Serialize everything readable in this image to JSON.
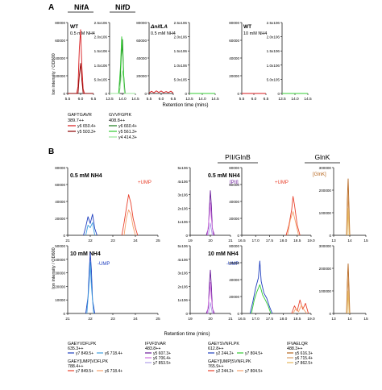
{
  "figure": {
    "panel_a_letter": "A",
    "panel_b_letter": "B",
    "y_axis_label": "Ion intensity / OD600",
    "x_axis_label": "Retention time (mins)"
  },
  "colors": {
    "red": "#d7191c",
    "darkred": "#8b0000",
    "green": "#33cc33",
    "lightgreen": "#99e699",
    "darkgreen": "#1b7a1b",
    "blue": "#1f3fbf",
    "ltblue": "#3fa0e0",
    "red2": "#e8412c",
    "orange": "#f5a06a",
    "purple": "#6a1b9a",
    "violet": "#a050d0",
    "magenta": "#d070e0",
    "lavender": "#b0a0e8",
    "brown": "#b5651d",
    "tan": "#d9a066",
    "gold": "#e6b85c"
  },
  "panel_a": {
    "titles": {
      "nifA": "NifA",
      "nifD": "NifD"
    },
    "box_label": "",
    "conditions": {
      "wt_low": "WT",
      "wt_low_sub": "0.5 mM NH4",
      "nifla": "ΔnifLA",
      "nifla_sub": "0.5 mM NH4",
      "wt_high": "WT",
      "wt_high_sub": "10 mM NH4"
    },
    "legends": [
      {
        "peptide": "GAFTGAVR",
        "mass": "389.7++",
        "ions": [
          {
            "label": "y6 650.4+",
            "color": "#d7191c"
          },
          {
            "label": "y5 503.3+",
            "color": "#8b0000"
          }
        ]
      },
      {
        "peptide": "GVVFGPIK",
        "mass": "408.8++",
        "ions": [
          {
            "label": "y6 660.4+",
            "color": "#1b7a1b"
          },
          {
            "label": "y5 561.3+",
            "color": "#33cc33"
          },
          {
            "label": "y4 414.3+",
            "color": "#99e699"
          }
        ]
      }
    ]
  },
  "panel_b": {
    "titles": {
      "pii": "PII/GlnB",
      "glnk": "GlnK"
    },
    "conditions": {
      "low": "0.5 mM NH4",
      "high": "10 mM NH4"
    },
    "annotations": {
      "ump_plus_1": "+UMP",
      "ump_plus_2": "+UMP",
      "ump_minus_1": "-UMP",
      "ump_minus_2": "-UMP",
      "pii_tag": "[PII]",
      "glnk_tag": "[GlnK]"
    },
    "legends": [
      {
        "peptide": "GAEYVDFLPK",
        "mass": "635.3++",
        "ions": [
          {
            "label": "y7 849.5+",
            "color": "#1f3fbf"
          },
          {
            "label": "y6 718.4+",
            "color": "#3fa0e0"
          }
        ],
        "peptide2": "GAEY[UMP]VDFLPK",
        "mass2": "788.4++",
        "ions2": [
          {
            "label": "y7 849.5+",
            "color": "#e8412c"
          },
          {
            "label": "y6 718.4+",
            "color": "#f5a06a"
          }
        ]
      },
      {
        "peptide": "IFVFDVAR",
        "mass": "483.8++",
        "ions": [
          {
            "label": "y5 607.3+",
            "color": "#6a1b9a"
          },
          {
            "label": "y6 706.4+",
            "color": "#d070e0"
          },
          {
            "label": "y7 853.5+",
            "color": "#b0a0e8"
          }
        ]
      },
      {
        "peptide": "GAEYSVNFLPK",
        "mass": "612.8++",
        "ions": [
          {
            "label": "y2 244.2+",
            "color": "#1f3fbf"
          },
          {
            "label": "y7 804.5+",
            "color": "#33cc33"
          }
        ],
        "peptide2": "GAEY[UMP]SVNFLPK",
        "mass2": "765.9++",
        "ions2": [
          {
            "label": "y2 244.2+",
            "color": "#e8412c"
          },
          {
            "label": "y7 804.5+",
            "color": "#f5a06a"
          }
        ]
      },
      {
        "peptide": "IFVAELQR",
        "mass": "488.3++",
        "ions": [
          {
            "label": "y5 616.3+",
            "color": "#b5651d"
          },
          {
            "label": "y6 715.4+",
            "color": "#d9a066"
          },
          {
            "label": "y7 862.5+",
            "color": "#e6b85c"
          }
        ]
      }
    ]
  },
  "chart_data": [
    {
      "type": "line",
      "panel": "A-NifA",
      "title": "NifA",
      "condition": "WT 0.5 mM NH4",
      "xlim": [
        5.5,
        6.5
      ],
      "ylim": [
        0,
        80000
      ],
      "x_ticks": [
        "5.5",
        "6.0",
        "6.5"
      ],
      "y_ticks": [
        "0",
        "20000",
        "40000",
        "60000",
        "80000"
      ],
      "series": [
        {
          "name": "y6 650.4+",
          "color": "#d7191c",
          "x": [
            5.5,
            5.85,
            5.9,
            5.95,
            6.0,
            6.05,
            6.1,
            6.15,
            6.5
          ],
          "y": [
            0,
            0,
            8000,
            50000,
            72000,
            30000,
            5000,
            0,
            0
          ]
        },
        {
          "name": "y5 503.3+",
          "color": "#8b0000",
          "x": [
            5.5,
            5.9,
            5.95,
            6.0,
            6.05,
            6.1,
            6.5
          ],
          "y": [
            0,
            0,
            20000,
            34000,
            15000,
            0,
            0
          ]
        }
      ]
    },
    {
      "type": "line",
      "panel": "A-NifD",
      "title": "NifD",
      "condition": "WT 0.5 mM NH4",
      "xlim": [
        13.5,
        14.5
      ],
      "ylim": [
        0,
        2500000
      ],
      "x_ticks": [
        "13.5",
        "14.0",
        "14.5"
      ],
      "y_ticks": [
        "0",
        "5.0x10^5",
        "1.0x10^6",
        "1.5x10^6",
        "2.0x10^6",
        "2.5x10^6"
      ],
      "series": [
        {
          "name": "y6 660.4+",
          "color": "#1b7a1b",
          "x": [
            13.5,
            13.85,
            13.9,
            13.95,
            14.0,
            14.05,
            14.1,
            14.5
          ],
          "y": [
            0,
            0,
            200000,
            1300000,
            1900000,
            600000,
            0,
            0
          ]
        },
        {
          "name": "y5 561.3+",
          "color": "#33cc33",
          "x": [
            13.5,
            13.85,
            13.92,
            13.97,
            14.02,
            14.08,
            14.5
          ],
          "y": [
            0,
            0,
            900000,
            2000000,
            1200000,
            0,
            0
          ]
        },
        {
          "name": "y4 414.3+",
          "color": "#99e699",
          "x": [
            13.5,
            13.88,
            13.95,
            14.0,
            14.08,
            14.5
          ],
          "y": [
            0,
            0,
            600000,
            800000,
            0,
            0
          ]
        }
      ]
    },
    {
      "type": "line",
      "panel": "A-NifA",
      "condition": "ΔnifLA 0.5 mM NH4",
      "xlim": [
        5.5,
        6.5
      ],
      "ylim": [
        0,
        80000
      ],
      "series": [
        {
          "name": "y6 650.4+",
          "color": "#d7191c",
          "x": [
            5.5,
            5.6,
            5.7,
            5.8,
            5.9,
            6.0,
            6.1,
            6.2,
            6.3,
            6.4,
            6.5
          ],
          "y": [
            500,
            2500,
            800,
            3000,
            1200,
            2800,
            900,
            2200,
            1000,
            2600,
            500
          ]
        }
      ]
    },
    {
      "type": "line",
      "panel": "A-NifD",
      "condition": "ΔnifLA 0.5 mM NH4",
      "xlim": [
        13.5,
        14.5
      ],
      "ylim": [
        0,
        2500000
      ],
      "series": [
        {
          "name": "y5 561.3+",
          "color": "#33cc33",
          "x": [
            13.5,
            14.5
          ],
          "y": [
            0,
            0
          ]
        }
      ]
    },
    {
      "type": "line",
      "panel": "A-NifA",
      "condition": "WT 10 mM NH4",
      "xlim": [
        5.5,
        6.5
      ],
      "ylim": [
        0,
        80000
      ],
      "series": [
        {
          "name": "y6 650.4+",
          "color": "#d7191c",
          "x": [
            5.5,
            6.5
          ],
          "y": [
            0,
            0
          ]
        }
      ]
    },
    {
      "type": "line",
      "panel": "A-NifD",
      "condition": "WT 10 mM NH4",
      "xlim": [
        13.5,
        14.5
      ],
      "ylim": [
        0,
        2500000
      ],
      "series": [
        {
          "name": "y5 561.3+",
          "color": "#33cc33",
          "x": [
            13.5,
            14.5
          ],
          "y": [
            0,
            0
          ]
        }
      ]
    },
    {
      "type": "line",
      "panel": "B-GAEYVDFLPK",
      "condition": "0.5 mM NH4",
      "xlim": [
        21,
        25
      ],
      "ylim": [
        0,
        80000
      ],
      "x_ticks": [
        "21",
        "22",
        "23",
        "24",
        "25"
      ],
      "y_ticks": [
        "0",
        "20000",
        "40000",
        "60000",
        "80000"
      ],
      "series": [
        {
          "name": "y7 849.5+",
          "color": "#1f3fbf",
          "x": [
            21.7,
            21.8,
            21.9,
            22.0,
            22.1,
            22.2,
            22.3
          ],
          "y": [
            0,
            10000,
            22000,
            14000,
            25000,
            8000,
            0
          ]
        },
        {
          "name": "y6 718.4+",
          "color": "#3fa0e0",
          "x": [
            21.8,
            21.9,
            22.0,
            22.1,
            22.2
          ],
          "y": [
            0,
            12000,
            9000,
            15000,
            0
          ]
        },
        {
          "name": "y7 849.5+ UMP",
          "color": "#e8412c",
          "x": [
            23.4,
            23.5,
            23.6,
            23.7,
            23.8,
            23.9,
            24.0,
            24.1
          ],
          "y": [
            0,
            15000,
            32000,
            48000,
            38000,
            20000,
            9000,
            0
          ]
        },
        {
          "name": "y6 718.4+ UMP",
          "color": "#f5a06a",
          "x": [
            23.5,
            23.6,
            23.7,
            23.8,
            23.9,
            24.0
          ],
          "y": [
            0,
            20000,
            30000,
            25000,
            10000,
            0
          ]
        }
      ]
    },
    {
      "type": "line",
      "panel": "B-IFVFDVAR",
      "condition": "0.5 mM NH4",
      "xlim": [
        19,
        21
      ],
      "ylim": [
        0,
        5000000
      ],
      "x_ticks": [
        "19",
        "20",
        "21"
      ],
      "y_ticks": [
        "0",
        "1x10^6",
        "2x10^6",
        "3x10^6",
        "4x10^6",
        "5x10^6"
      ],
      "series": [
        {
          "name": "y5 607.3+",
          "color": "#6a1b9a",
          "x": [
            19.8,
            19.9,
            19.95,
            20.0,
            20.05,
            20.1,
            20.2
          ],
          "y": [
            0,
            500000,
            2000000,
            3300000,
            2200000,
            500000,
            0
          ]
        },
        {
          "name": "y6 706.4+",
          "color": "#d070e0",
          "x": [
            19.85,
            19.95,
            20.0,
            20.05,
            20.15
          ],
          "y": [
            0,
            1500000,
            2400000,
            1200000,
            0
          ]
        },
        {
          "name": "y7 853.5+",
          "color": "#b0a0e8",
          "x": [
            19.9,
            20.0,
            20.1
          ],
          "y": [
            0,
            900000,
            0
          ]
        }
      ]
    },
    {
      "type": "line",
      "panel": "B-GAEYSVNFLPK",
      "condition": "0.5 mM NH4",
      "xlim": [
        16.5,
        19.0
      ],
      "ylim": [
        0,
        80000
      ],
      "x_ticks": [
        "16.5",
        "17.0",
        "17.5",
        "18.0",
        "18.5",
        "19.0"
      ],
      "y_ticks": [
        "0",
        "20000",
        "40000",
        "60000",
        "80000"
      ],
      "series": [
        {
          "name": "y2 244.2+ UMP",
          "color": "#e8412c",
          "x": [
            18.1,
            18.2,
            18.3,
            18.35,
            18.4,
            18.5,
            18.6
          ],
          "y": [
            0,
            12000,
            30000,
            46000,
            36000,
            12000,
            0
          ]
        },
        {
          "name": "y7 804.5+ UMP",
          "color": "#f5a06a",
          "x": [
            18.15,
            18.25,
            18.35,
            18.45,
            18.55
          ],
          "y": [
            0,
            18000,
            28000,
            14000,
            0
          ]
        }
      ]
    },
    {
      "type": "line",
      "panel": "B-IFVAELQR",
      "condition": "0.5 mM NH4",
      "xlim": [
        13,
        15
      ],
      "ylim": [
        0,
        300000
      ],
      "x_ticks": [
        "13",
        "14",
        "15"
      ],
      "y_ticks": [
        "0",
        "100000",
        "200000",
        "300000"
      ],
      "series": [
        {
          "name": "y5 616.3+",
          "color": "#b5651d",
          "x": [
            13.8,
            13.85,
            13.9,
            13.95,
            14.0
          ],
          "y": [
            0,
            160000,
            250000,
            130000,
            0
          ]
        },
        {
          "name": "y6 715.4+",
          "color": "#d9a066",
          "x": [
            13.82,
            13.88,
            13.93,
            13.98
          ],
          "y": [
            0,
            180000,
            100000,
            0
          ]
        },
        {
          "name": "y7 862.5+",
          "color": "#e6b85c",
          "x": [
            13.84,
            13.9,
            13.96
          ],
          "y": [
            0,
            120000,
            0
          ]
        }
      ]
    },
    {
      "type": "line",
      "panel": "B-GAEYVDFLPK",
      "condition": "10 mM NH4",
      "xlim": [
        21,
        25
      ],
      "ylim": [
        0,
        50000
      ],
      "x_ticks": [
        "21",
        "22",
        "23",
        "24",
        "25"
      ],
      "y_ticks": [
        "0",
        "10000",
        "20000",
        "30000",
        "40000",
        "50000"
      ],
      "series": [
        {
          "name": "y7 849.5+",
          "color": "#1f3fbf",
          "x": [
            21.8,
            21.9,
            21.95,
            22.0,
            22.05,
            22.1,
            22.2
          ],
          "y": [
            0,
            12000,
            30000,
            45000,
            32000,
            10000,
            0
          ]
        },
        {
          "name": "y6 718.4+",
          "color": "#3fa0e0",
          "x": [
            21.85,
            21.95,
            22.0,
            22.05,
            22.15
          ],
          "y": [
            0,
            22000,
            38000,
            20000,
            0
          ]
        }
      ]
    },
    {
      "type": "line",
      "panel": "B-IFVFDVAR",
      "condition": "10 mM NH4",
      "xlim": [
        19,
        21
      ],
      "ylim": [
        0,
        5000000
      ],
      "series": [
        {
          "name": "y5 607.3+",
          "color": "#6a1b9a",
          "x": [
            19.8,
            19.9,
            19.95,
            20.0,
            20.05,
            20.1,
            20.2
          ],
          "y": [
            0,
            400000,
            2200000,
            3200000,
            2000000,
            400000,
            0
          ]
        },
        {
          "name": "y6 706.4+",
          "color": "#d070e0",
          "x": [
            19.85,
            19.95,
            20.0,
            20.05,
            20.15
          ],
          "y": [
            0,
            1400000,
            2300000,
            1100000,
            0
          ]
        },
        {
          "name": "y7 853.5+",
          "color": "#b0a0e8",
          "x": [
            19.9,
            20.0,
            20.1
          ],
          "y": [
            0,
            800000,
            0
          ]
        }
      ]
    },
    {
      "type": "line",
      "panel": "B-GAEYSVNFLPK",
      "condition": "10 mM NH4",
      "xlim": [
        16.5,
        19.0
      ],
      "ylim": [
        0,
        80000
      ],
      "series": [
        {
          "name": "y2 244.2+",
          "color": "#1f3fbf",
          "x": [
            16.8,
            16.9,
            17.0,
            17.1,
            17.15,
            17.2,
            17.3,
            17.4,
            17.5,
            17.6
          ],
          "y": [
            0,
            14000,
            30000,
            42000,
            62000,
            38000,
            24000,
            18000,
            8000,
            0
          ]
        },
        {
          "name": "y7 804.5+",
          "color": "#33cc33",
          "x": [
            16.85,
            16.95,
            17.05,
            17.15,
            17.25,
            17.35,
            17.45,
            17.55
          ],
          "y": [
            0,
            16000,
            26000,
            34000,
            22000,
            16000,
            9000,
            0
          ]
        },
        {
          "name": "y2 244.2+ UMP",
          "color": "#e8412c",
          "x": [
            18.3,
            18.4,
            18.5,
            18.6,
            18.7,
            18.8,
            18.9
          ],
          "y": [
            0,
            9000,
            3000,
            16000,
            5000,
            12000,
            0
          ]
        },
        {
          "name": "y7 804.5+ UMP",
          "color": "#f5a06a",
          "x": [
            18.35,
            18.45,
            18.55,
            18.65,
            18.75,
            18.85
          ],
          "y": [
            0,
            6000,
            2000,
            10000,
            4000,
            0
          ]
        }
      ]
    },
    {
      "type": "line",
      "panel": "B-IFVAELQR",
      "condition": "10 mM NH4",
      "xlim": [
        13,
        15
      ],
      "ylim": [
        0,
        300000
      ],
      "series": [
        {
          "name": "y5 616.3+",
          "color": "#b5651d",
          "x": [
            13.8,
            13.85,
            13.9,
            13.95,
            14.0
          ],
          "y": [
            0,
            140000,
            220000,
            120000,
            0
          ]
        },
        {
          "name": "y6 715.4+",
          "color": "#d9a066",
          "x": [
            13.82,
            13.88,
            13.93,
            13.98
          ],
          "y": [
            0,
            160000,
            90000,
            0
          ]
        },
        {
          "name": "y7 862.5+",
          "color": "#e6b85c",
          "x": [
            13.84,
            13.9,
            13.96
          ],
          "y": [
            0,
            100000,
            0
          ]
        }
      ]
    }
  ]
}
